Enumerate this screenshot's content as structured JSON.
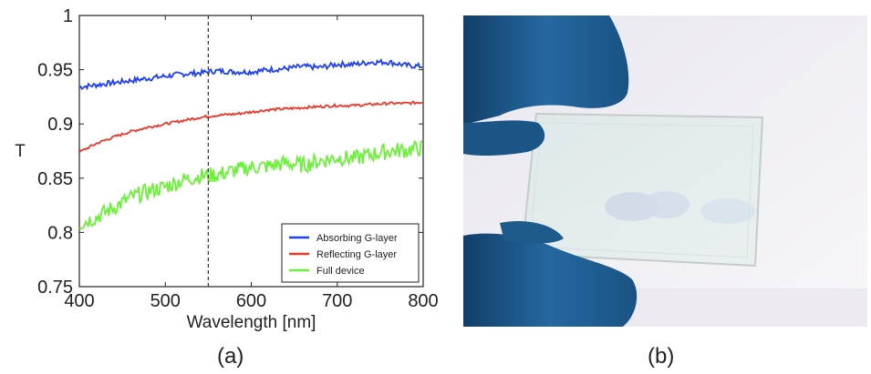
{
  "chart_data": {
    "type": "line",
    "title": "",
    "xlabel": "Wavelength [nm]",
    "ylabel": "T",
    "xlim": [
      400,
      800
    ],
    "ylim": [
      0.75,
      1
    ],
    "x_ticks": [
      "400",
      "500",
      "600",
      "700",
      "800"
    ],
    "y_ticks": [
      "0.75",
      "0.8",
      "0.85",
      "0.9",
      "0.95",
      "1"
    ],
    "vertical_marker_x": 550,
    "legend_position": "bottom-right",
    "grid": false,
    "x": [
      400,
      420,
      440,
      460,
      480,
      500,
      520,
      540,
      560,
      580,
      600,
      620,
      640,
      660,
      680,
      700,
      720,
      740,
      760,
      780,
      800
    ],
    "series": [
      {
        "name": "Absorbing G-layer",
        "color": "#1f3ff5",
        "values": [
          0.934,
          0.936,
          0.938,
          0.94,
          0.942,
          0.944,
          0.946,
          0.947,
          0.949,
          0.948,
          0.948,
          0.95,
          0.951,
          0.953,
          0.952,
          0.955,
          0.955,
          0.957,
          0.957,
          0.954,
          0.953
        ]
      },
      {
        "name": "Reflecting G-layer",
        "color": "#e8392b",
        "values": [
          0.874,
          0.882,
          0.888,
          0.893,
          0.897,
          0.9,
          0.903,
          0.906,
          0.908,
          0.909,
          0.911,
          0.913,
          0.914,
          0.915,
          0.916,
          0.917,
          0.917,
          0.918,
          0.919,
          0.919,
          0.92
        ]
      },
      {
        "name": "Full device",
        "color": "#6cf03a",
        "values": [
          0.808,
          0.814,
          0.823,
          0.832,
          0.838,
          0.842,
          0.848,
          0.852,
          0.853,
          0.857,
          0.86,
          0.861,
          0.864,
          0.862,
          0.866,
          0.869,
          0.868,
          0.872,
          0.875,
          0.876,
          0.878
        ]
      }
    ]
  },
  "captions": {
    "a": "(a)",
    "b": "(b)"
  },
  "photo": {
    "description_icon": "glass-plate-photo-icon",
    "background_color": "#f2f0f4",
    "glove_color": "#1f5e93"
  }
}
